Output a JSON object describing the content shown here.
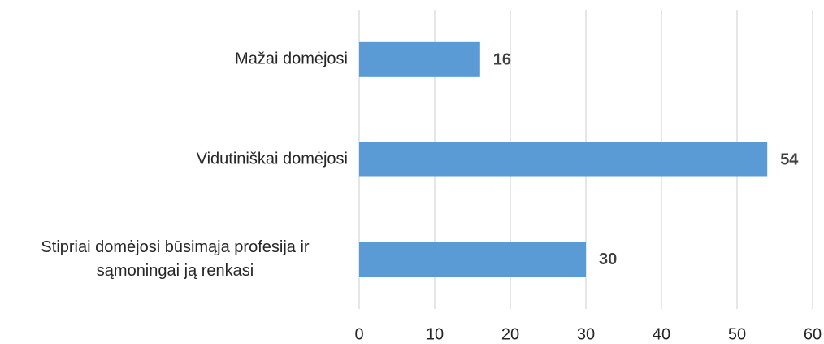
{
  "chart_data": {
    "type": "bar",
    "orientation": "horizontal",
    "categories": [
      "Mažai domėjosi",
      "Vidutiniškai domėjosi",
      "Stipriai domėjosi būsimąja profesija ir sąmoningai ją renkasi"
    ],
    "values": [
      16,
      54,
      30
    ],
    "color": "#5b9bd5",
    "xlim": [
      0,
      60
    ],
    "xticks": [
      0,
      10,
      20,
      30,
      40,
      50,
      60
    ],
    "grid": true
  }
}
